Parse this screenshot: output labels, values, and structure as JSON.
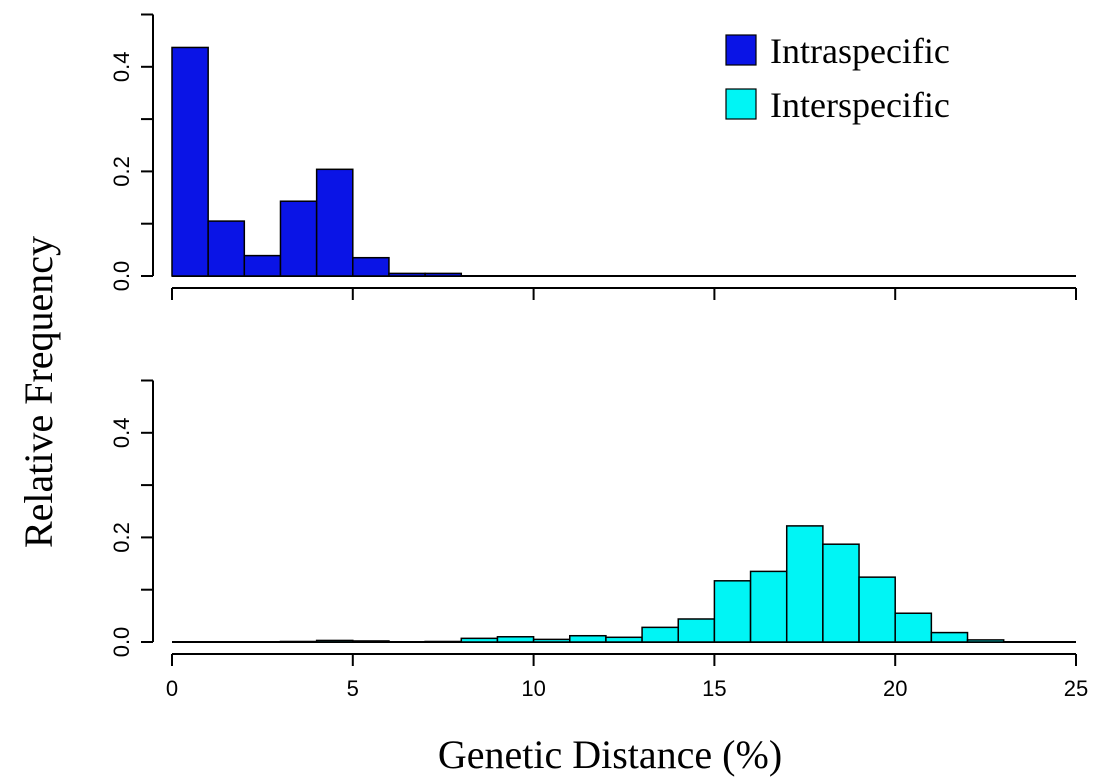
{
  "chart_data": {
    "type": "bar",
    "ylabel": "Relative Frequency",
    "xlabel": "Genetic Distance (%)",
    "xlim": [
      0,
      25
    ],
    "ylim": [
      0,
      0.5
    ],
    "x_ticks": [
      0,
      5,
      10,
      15,
      20,
      25
    ],
    "y_ticks": [
      0.0,
      0.2,
      0.4
    ],
    "bin_width": 1,
    "legend": {
      "placement": "top-right",
      "entries": [
        {
          "label": "Intraspecific",
          "color": "#0a14e6"
        },
        {
          "label": "Interspecific",
          "color": "#00f5f5"
        }
      ]
    },
    "panels": [
      {
        "name": "Intraspecific",
        "color": "#0a14e6",
        "bins": [
          {
            "x0": 0,
            "x1": 1,
            "value": 0.437
          },
          {
            "x0": 1,
            "x1": 2,
            "value": 0.105
          },
          {
            "x0": 2,
            "x1": 3,
            "value": 0.039
          },
          {
            "x0": 3,
            "x1": 4,
            "value": 0.143
          },
          {
            "x0": 4,
            "x1": 5,
            "value": 0.204
          },
          {
            "x0": 5,
            "x1": 6,
            "value": 0.035
          },
          {
            "x0": 6,
            "x1": 7,
            "value": 0.005
          },
          {
            "x0": 7,
            "x1": 8,
            "value": 0.005
          }
        ]
      },
      {
        "name": "Interspecific",
        "color": "#00f5f5",
        "bins": [
          {
            "x0": 3,
            "x1": 4,
            "value": 0.001
          },
          {
            "x0": 4,
            "x1": 5,
            "value": 0.003
          },
          {
            "x0": 5,
            "x1": 6,
            "value": 0.002
          },
          {
            "x0": 7,
            "x1": 8,
            "value": 0.001
          },
          {
            "x0": 8,
            "x1": 9,
            "value": 0.007
          },
          {
            "x0": 9,
            "x1": 10,
            "value": 0.01
          },
          {
            "x0": 10,
            "x1": 11,
            "value": 0.005
          },
          {
            "x0": 11,
            "x1": 12,
            "value": 0.012
          },
          {
            "x0": 12,
            "x1": 13,
            "value": 0.009
          },
          {
            "x0": 13,
            "x1": 14,
            "value": 0.028
          },
          {
            "x0": 14,
            "x1": 15,
            "value": 0.044
          },
          {
            "x0": 15,
            "x1": 16,
            "value": 0.117
          },
          {
            "x0": 16,
            "x1": 17,
            "value": 0.135
          },
          {
            "x0": 17,
            "x1": 18,
            "value": 0.222
          },
          {
            "x0": 18,
            "x1": 19,
            "value": 0.187
          },
          {
            "x0": 19,
            "x1": 20,
            "value": 0.124
          },
          {
            "x0": 20,
            "x1": 21,
            "value": 0.055
          },
          {
            "x0": 21,
            "x1": 22,
            "value": 0.018
          },
          {
            "x0": 22,
            "x1": 23,
            "value": 0.004
          }
        ]
      }
    ]
  }
}
